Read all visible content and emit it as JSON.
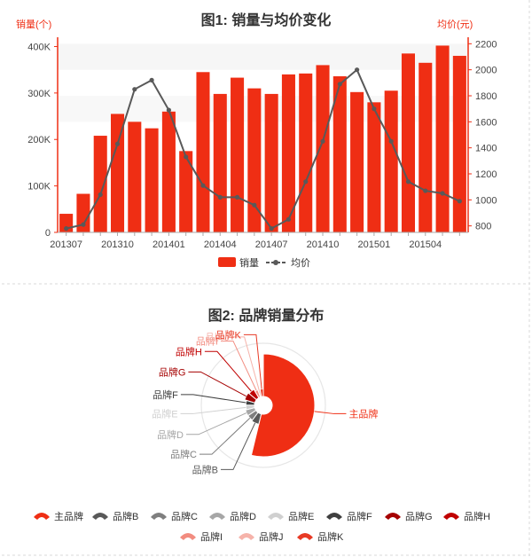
{
  "colors": {
    "accent": "#ef2e14",
    "line": "#595959",
    "axis_left": "#ef2e14",
    "axis_right": "#ef2e14",
    "grid": "#eeeeee",
    "divider": "#d9d9d9"
  },
  "chart_data": [
    {
      "type": "bar+line",
      "title": "图1: 销量与均价变化",
      "ylabel_left": "销量(个)",
      "ylabel_right": "均价(元)",
      "categories": [
        "201307",
        "201308",
        "201309",
        "201310",
        "201311",
        "201312",
        "201401",
        "201402",
        "201403",
        "201404",
        "201405",
        "201406",
        "201407",
        "201408",
        "201409",
        "201410",
        "201411",
        "201412",
        "201501",
        "201502",
        "201503",
        "201504",
        "201505",
        "201506"
      ],
      "x_tick_labels": [
        "201307",
        "201310",
        "201401",
        "201404",
        "201407",
        "201410",
        "201501",
        "201504"
      ],
      "y_left_ticks": [
        "0",
        "100K",
        "200K",
        "300K",
        "400K"
      ],
      "y_left_lim": [
        0,
        420000
      ],
      "y_right_ticks": [
        "800",
        "1000",
        "1200",
        "1400",
        "1600",
        "1800",
        "2000",
        "2200"
      ],
      "y_right_lim": [
        750,
        2250
      ],
      "series": [
        {
          "name": "销量",
          "kind": "bar",
          "values": [
            40000,
            83000,
            208000,
            255000,
            238000,
            224000,
            260000,
            175000,
            345000,
            298000,
            333000,
            310000,
            298000,
            340000,
            342000,
            360000,
            336000,
            302000,
            280000,
            305000,
            385000,
            365000,
            402000,
            380000
          ]
        },
        {
          "name": "均价",
          "kind": "line",
          "values": [
            780,
            810,
            1040,
            1430,
            1850,
            1920,
            1690,
            1330,
            1110,
            1020,
            1020,
            960,
            780,
            850,
            1140,
            1450,
            1890,
            2000,
            1700,
            1450,
            1140,
            1070,
            1050,
            990
          ]
        }
      ],
      "legend": {
        "position": "bottom"
      }
    },
    {
      "type": "pie",
      "title": "图2: 品牌销量分布",
      "slices": [
        {
          "name": "主品牌",
          "value": 50,
          "color": "#ef2e14"
        },
        {
          "name": "品牌B",
          "value": 6,
          "color": "#595959"
        },
        {
          "name": "品牌C",
          "value": 5,
          "color": "#7f7f7f"
        },
        {
          "name": "品牌D",
          "value": 5,
          "color": "#a6a6a6"
        },
        {
          "name": "品牌E",
          "value": 4,
          "color": "#d0d0d0"
        },
        {
          "name": "品牌F",
          "value": 4,
          "color": "#3f3f3f"
        },
        {
          "name": "品牌G",
          "value": 6,
          "color": "#a50000"
        },
        {
          "name": "品牌H",
          "value": 5,
          "color": "#c00000"
        },
        {
          "name": "品牌I",
          "value": 3,
          "color": "#f28c80"
        },
        {
          "name": "品牌J",
          "value": 2,
          "color": "#f6b3aa"
        },
        {
          "name": "品牌K",
          "value": 3,
          "color": "#e83a25"
        }
      ],
      "legend": {
        "position": "bottom"
      }
    }
  ]
}
